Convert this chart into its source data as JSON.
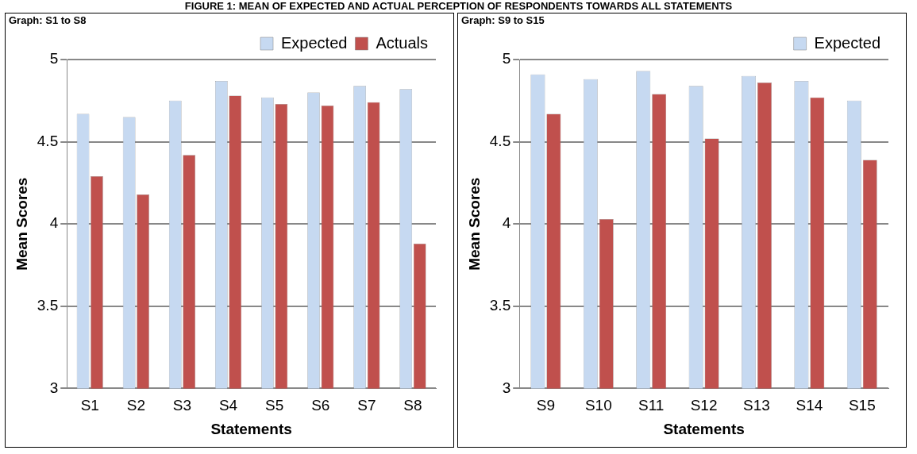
{
  "chart_data": [
    {
      "type": "bar",
      "title": "FIGURE 1: MEAN OF EXPECTED AND ACTUAL PERCEPTION OF RESPONDENTS TOWARDS ALL STATEMENTS",
      "subtitle": "Graph: S1 to S8",
      "xlabel": "Statements",
      "ylabel": "Mean Scores",
      "categories": [
        "S1",
        "S2",
        "S3",
        "S4",
        "S5",
        "S6",
        "S7",
        "S8"
      ],
      "series": [
        {
          "name": "Expected",
          "color": "#c6d9f1",
          "values": [
            4.67,
            4.65,
            4.75,
            4.87,
            4.77,
            4.8,
            4.84,
            4.82
          ]
        },
        {
          "name": "Actuals",
          "color": "#c0504d",
          "values": [
            4.29,
            4.18,
            4.42,
            4.78,
            4.73,
            4.72,
            4.74,
            3.88
          ]
        }
      ],
      "ylim": [
        3,
        5
      ],
      "yticks": [
        3,
        3.5,
        4,
        4.5,
        5
      ],
      "grid": "y",
      "legend": "top right"
    },
    {
      "type": "bar",
      "subtitle": "Graph: S9 to S15",
      "xlabel": "Statements",
      "ylabel": "Mean Scores",
      "categories": [
        "S9",
        "S10",
        "S11",
        "S12",
        "S13",
        "S14",
        "S15"
      ],
      "series": [
        {
          "name": "Expected",
          "color": "#c6d9f1",
          "values": [
            4.91,
            4.88,
            4.93,
            4.84,
            4.9,
            4.87,
            4.75
          ]
        },
        {
          "color": "#c0504d",
          "values": [
            4.67,
            4.03,
            4.79,
            4.52,
            4.86,
            4.77,
            4.39
          ]
        }
      ],
      "ylim": [
        3,
        5
      ],
      "yticks": [
        3,
        3.5,
        4,
        4.5,
        5
      ],
      "grid": "y",
      "legend": "top right"
    }
  ]
}
